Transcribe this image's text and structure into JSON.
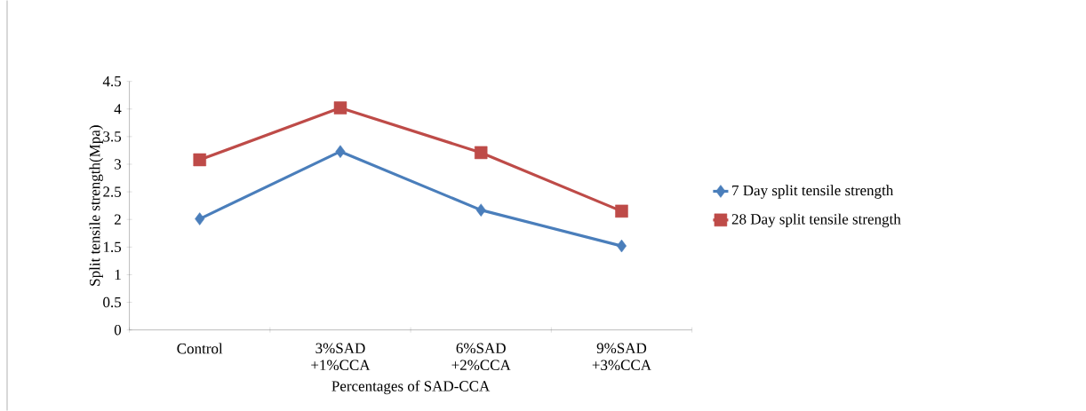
{
  "chart_data": {
    "type": "line",
    "xlabel": "Percentages of SAD-CCA",
    "ylabel": "Split tensile strength(Mpa)",
    "categories": [
      "Control",
      "3%SAD +1%CCA",
      "6%SAD +2%CCA",
      "9%SAD +3%CCA"
    ],
    "series": [
      {
        "name": "7 Day split tensile strength",
        "color": "#4a7ebb",
        "marker": "diamond",
        "values": [
          2.01,
          3.23,
          2.17,
          1.52
        ]
      },
      {
        "name": "28 Day split tensile strength",
        "color": "#be4b48",
        "marker": "square",
        "values": [
          3.08,
          4.02,
          3.21,
          2.15
        ]
      }
    ],
    "ylim": [
      0,
      4.5
    ],
    "yticks": [
      0,
      0.5,
      1,
      1.5,
      2,
      2.5,
      3,
      3.5,
      4,
      4.5
    ],
    "grid": false,
    "legend": "right",
    "line_style": "solid"
  }
}
